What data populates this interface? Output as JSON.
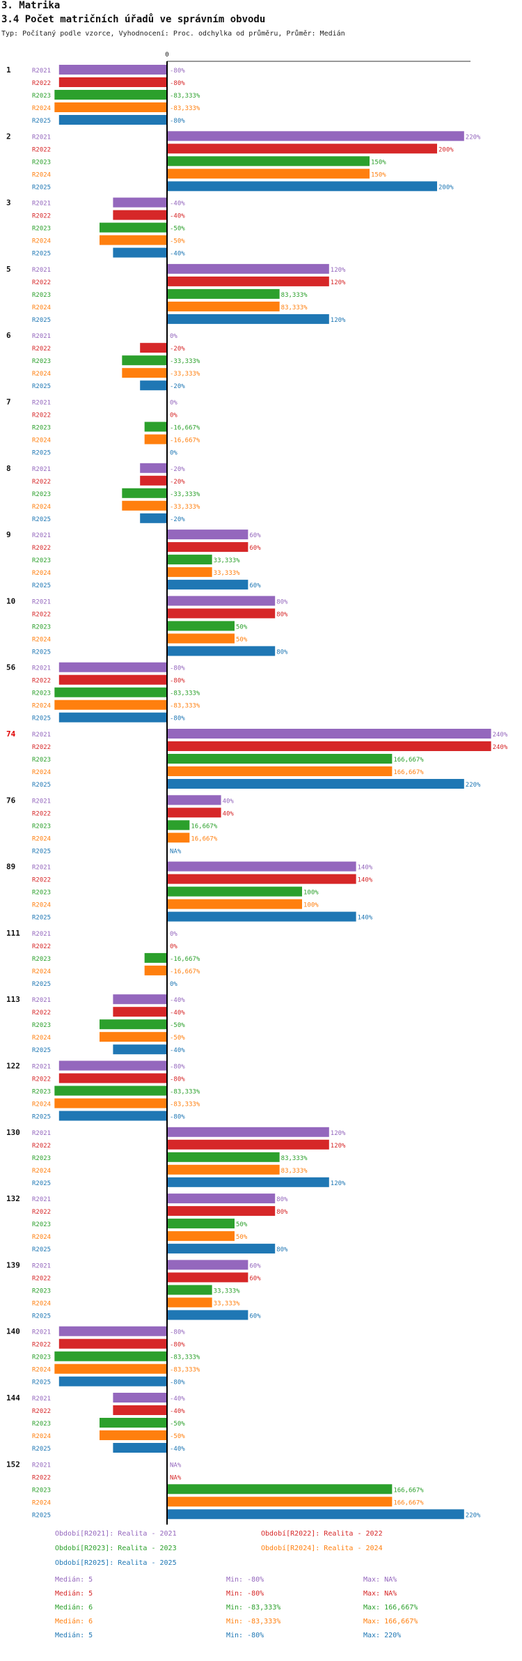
{
  "header": {
    "section": "3. Matrika",
    "title": "3.4 Počet matričních úřadů ve správním obvodu",
    "subtitle": "Typ: Počítaný podle vzorce, Vyhodnocení: Proc. odchylka od průměru, Průměr: Medián"
  },
  "chart_data": {
    "type": "bar",
    "orientation": "horizontal",
    "zero_label": "0",
    "unit": "%",
    "categories": [
      "1",
      "2",
      "3",
      "5",
      "6",
      "7",
      "8",
      "9",
      "10",
      "56",
      "74",
      "76",
      "89",
      "111",
      "113",
      "122",
      "130",
      "132",
      "139",
      "140",
      "144",
      "152"
    ],
    "highlight_category": "74",
    "series": [
      {
        "name": "R2021",
        "color": "#9467bd",
        "values": [
          -80,
          220,
          -40,
          120,
          0,
          0,
          -20,
          60,
          80,
          -80,
          240,
          40,
          140,
          0,
          -40,
          -80,
          120,
          80,
          60,
          -80,
          -40,
          null
        ],
        "labels": [
          "-80%",
          "220%",
          "-40%",
          "120%",
          "0%",
          "0%",
          "-20%",
          "60%",
          "80%",
          "-80%",
          "240%",
          "40%",
          "140%",
          "0%",
          "-40%",
          "-80%",
          "120%",
          "80%",
          "60%",
          "-80%",
          "-40%",
          "NA%"
        ]
      },
      {
        "name": "R2022",
        "color": "#d62728",
        "values": [
          -80,
          200,
          -40,
          120,
          -20,
          0,
          -20,
          60,
          80,
          -80,
          240,
          40,
          140,
          0,
          -40,
          -80,
          120,
          80,
          60,
          -80,
          -40,
          null
        ],
        "labels": [
          "-80%",
          "200%",
          "-40%",
          "120%",
          "-20%",
          "0%",
          "-20%",
          "60%",
          "80%",
          "-80%",
          "240%",
          "40%",
          "140%",
          "0%",
          "-40%",
          "-80%",
          "120%",
          "80%",
          "60%",
          "-80%",
          "-40%",
          "NA%"
        ]
      },
      {
        "name": "R2023",
        "color": "#2ca02c",
        "values": [
          -83.333,
          150,
          -50,
          83.333,
          -33.333,
          -16.667,
          -33.333,
          33.333,
          50,
          -83.333,
          166.667,
          16.667,
          100,
          -16.667,
          -50,
          -83.333,
          83.333,
          50,
          33.333,
          -83.333,
          -50,
          166.667
        ],
        "labels": [
          "-83,333%",
          "150%",
          "-50%",
          "83,333%",
          "-33,333%",
          "-16,667%",
          "-33,333%",
          "33,333%",
          "50%",
          "-83,333%",
          "166,667%",
          "16,667%",
          "100%",
          "-16,667%",
          "-50%",
          "-83,333%",
          "83,333%",
          "50%",
          "33,333%",
          "-83,333%",
          "-50%",
          "166,667%"
        ]
      },
      {
        "name": "R2024",
        "color": "#ff7f0e",
        "values": [
          -83.333,
          150,
          -50,
          83.333,
          -33.333,
          -16.667,
          -33.333,
          33.333,
          50,
          -83.333,
          166.667,
          16.667,
          100,
          -16.667,
          -50,
          -83.333,
          83.333,
          50,
          33.333,
          -83.333,
          -50,
          166.667
        ],
        "labels": [
          "-83,333%",
          "150%",
          "-50%",
          "83,333%",
          "-33,333%",
          "-16,667%",
          "-33,333%",
          "33,333%",
          "50%",
          "-83,333%",
          "166,667%",
          "16,667%",
          "100%",
          "-16,667%",
          "-50%",
          "-83,333%",
          "83,333%",
          "50%",
          "33,333%",
          "-83,333%",
          "-50%",
          "166,667%"
        ]
      },
      {
        "name": "R2025",
        "color": "#1f77b4",
        "values": [
          -80,
          200,
          -40,
          120,
          -20,
          0,
          -20,
          60,
          80,
          -80,
          220,
          null,
          140,
          0,
          -40,
          -80,
          120,
          80,
          60,
          -80,
          -40,
          220
        ],
        "labels": [
          "-80%",
          "200%",
          "-40%",
          "120%",
          "-20%",
          "0%",
          "-20%",
          "60%",
          "80%",
          "-80%",
          "220%",
          "NA%",
          "140%",
          "0%",
          "-40%",
          "-80%",
          "120%",
          "80%",
          "60%",
          "-80%",
          "-40%",
          "220%"
        ]
      }
    ]
  },
  "legend": [
    {
      "text": "Období[R2021]: Realita - 2021",
      "color": "#9467bd"
    },
    {
      "text": "Období[R2022]: Realita - 2022",
      "color": "#d62728"
    },
    {
      "text": "Období[R2023]: Realita - 2023",
      "color": "#2ca02c"
    },
    {
      "text": "Období[R2024]: Realita - 2024",
      "color": "#ff7f0e"
    },
    {
      "text": "Období[R2025]: Realita - 2025",
      "color": "#1f77b4"
    }
  ],
  "stats": [
    {
      "median": "Medián: 5",
      "min": "Min: -80%",
      "max": "Max: NA%",
      "color": "#9467bd"
    },
    {
      "median": "Medián: 5",
      "min": "Min: -80%",
      "max": "Max: NA%",
      "color": "#d62728"
    },
    {
      "median": "Medián: 6",
      "min": "Min: -83,333%",
      "max": "Max: 166,667%",
      "color": "#2ca02c"
    },
    {
      "median": "Medián: 6",
      "min": "Min: -83,333%",
      "max": "Max: 166,667%",
      "color": "#ff7f0e"
    },
    {
      "median": "Medián: 5",
      "min": "Min: -80%",
      "max": "Max: 220%",
      "color": "#1f77b4"
    }
  ]
}
